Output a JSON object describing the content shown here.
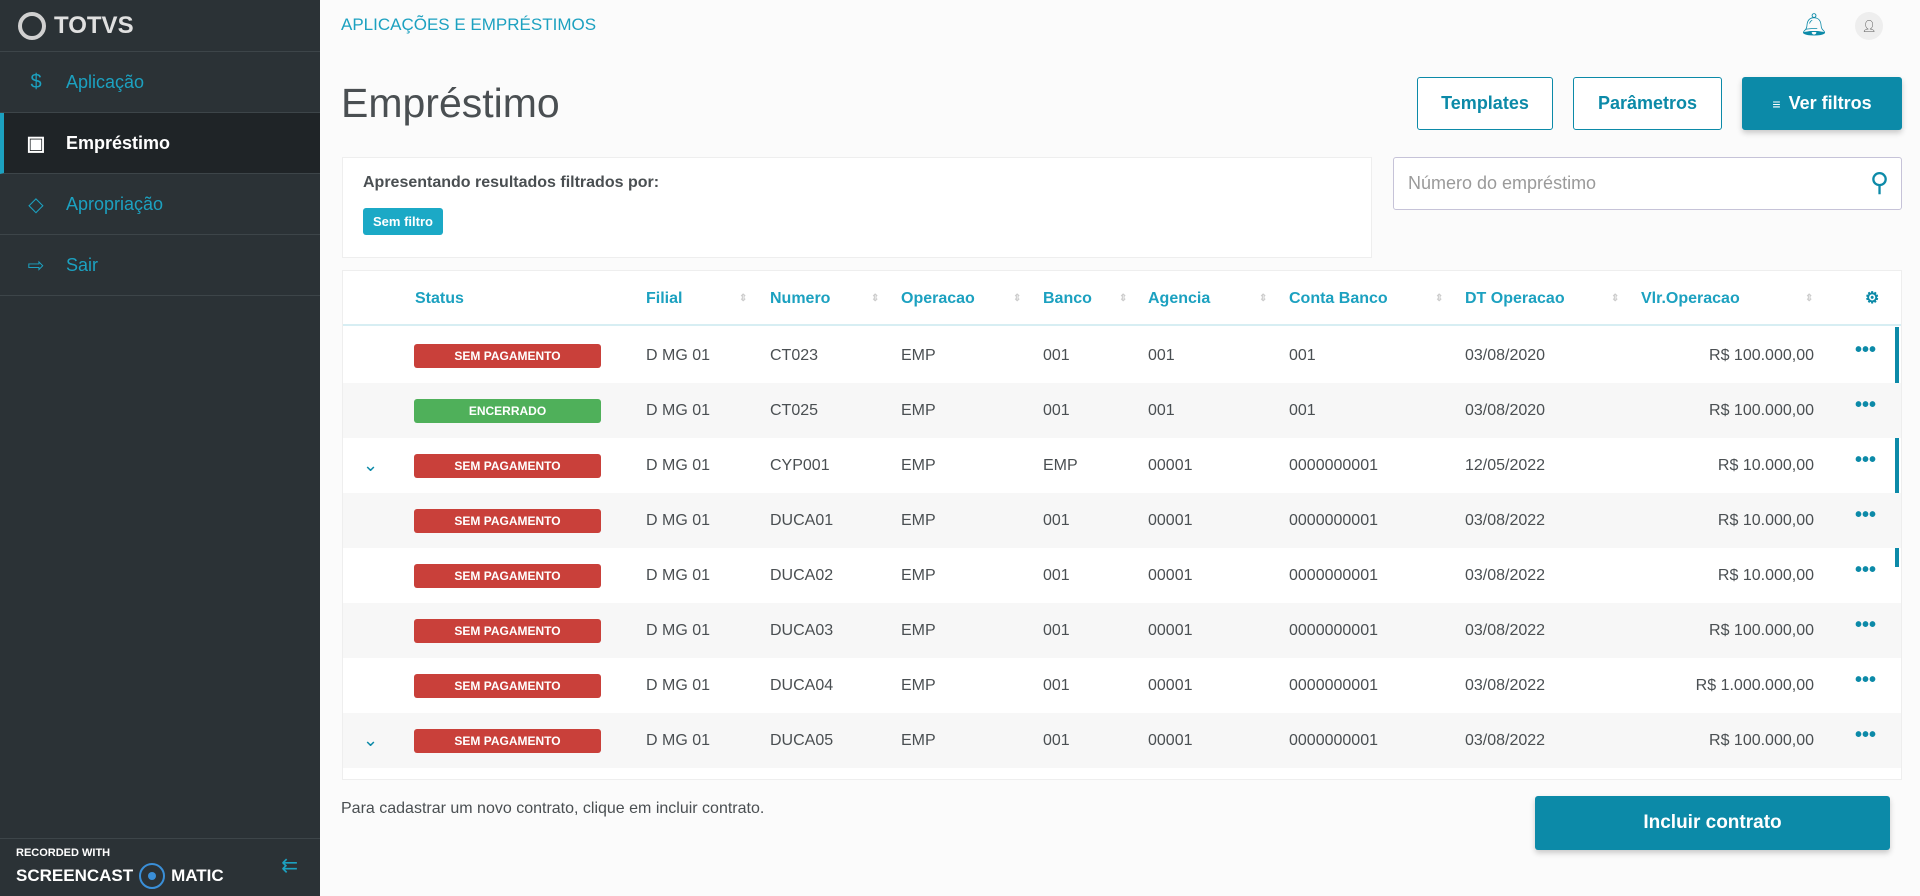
{
  "brand": "TOTVS",
  "sidebar": {
    "items": [
      {
        "label": "Aplicação",
        "icon": "dollar-circle-icon"
      },
      {
        "label": "Empréstimo",
        "icon": "money-icon",
        "active": true
      },
      {
        "label": "Apropriação",
        "icon": "layers-icon"
      },
      {
        "label": "Sair",
        "icon": "logout-icon"
      }
    ]
  },
  "recorder": {
    "line1": "RECORDED WITH",
    "line2a": "SCREENCAST",
    "line2b": "MATIC"
  },
  "header": {
    "breadcrumb": "APLICAÇÕES E EMPRÉSTIMOS"
  },
  "page": {
    "title": "Empréstimo",
    "templates": "Templates",
    "parametros": "Parâmetros",
    "ver_filtros": "Ver filtros"
  },
  "filter": {
    "label": "Apresentando resultados filtrados por:",
    "chip": "Sem filtro"
  },
  "search": {
    "placeholder": "Número do empréstimo"
  },
  "table": {
    "columns": [
      "Status",
      "Filial",
      "Numero",
      "Operacao",
      "Banco",
      "Agencia",
      "Conta Banco",
      "DT Operacao",
      "Vlr.Operacao"
    ],
    "rows": [
      {
        "expand": false,
        "status": "SEM PAGAMENTO",
        "filial": "D MG 01",
        "numero": "CT023",
        "operacao": "EMP",
        "banco": "001",
        "agencia": "001",
        "conta": "001",
        "dt": "03/08/2020",
        "valor": "R$ 100.000,00"
      },
      {
        "expand": false,
        "status": "ENCERRADO",
        "filial": "D MG 01",
        "numero": "CT025",
        "operacao": "EMP",
        "banco": "001",
        "agencia": "001",
        "conta": "001",
        "dt": "03/08/2020",
        "valor": "R$ 100.000,00"
      },
      {
        "expand": true,
        "status": "SEM PAGAMENTO",
        "filial": "D MG 01",
        "numero": "CYP001",
        "operacao": "EMP",
        "banco": "EMP",
        "agencia": "00001",
        "conta": "0000000001",
        "dt": "12/05/2022",
        "valor": "R$ 10.000,00"
      },
      {
        "expand": false,
        "status": "SEM PAGAMENTO",
        "filial": "D MG 01",
        "numero": "DUCA01",
        "operacao": "EMP",
        "banco": "001",
        "agencia": "00001",
        "conta": "0000000001",
        "dt": "03/08/2022",
        "valor": "R$ 10.000,00"
      },
      {
        "expand": false,
        "status": "SEM PAGAMENTO",
        "filial": "D MG 01",
        "numero": "DUCA02",
        "operacao": "EMP",
        "banco": "001",
        "agencia": "00001",
        "conta": "0000000001",
        "dt": "03/08/2022",
        "valor": "R$ 10.000,00"
      },
      {
        "expand": false,
        "status": "SEM PAGAMENTO",
        "filial": "D MG 01",
        "numero": "DUCA03",
        "operacao": "EMP",
        "banco": "001",
        "agencia": "00001",
        "conta": "0000000001",
        "dt": "03/08/2022",
        "valor": "R$ 100.000,00"
      },
      {
        "expand": false,
        "status": "SEM PAGAMENTO",
        "filial": "D MG 01",
        "numero": "DUCA04",
        "operacao": "EMP",
        "banco": "001",
        "agencia": "00001",
        "conta": "0000000001",
        "dt": "03/08/2022",
        "valor": "R$ 1.000.000,00"
      },
      {
        "expand": true,
        "status": "SEM PAGAMENTO",
        "filial": "D MG 01",
        "numero": "DUCA05",
        "operacao": "EMP",
        "banco": "001",
        "agencia": "00001",
        "conta": "0000000001",
        "dt": "03/08/2022",
        "valor": "R$ 100.000,00"
      }
    ]
  },
  "colors": {
    "accent": "#0c8aa8",
    "sem_pagamento": "#c9403a",
    "encerrado": "#4fb05a"
  },
  "footer": {
    "hint": "Para cadastrar um novo contrato, clique em incluir contrato.",
    "incluir": "Incluir contrato"
  }
}
